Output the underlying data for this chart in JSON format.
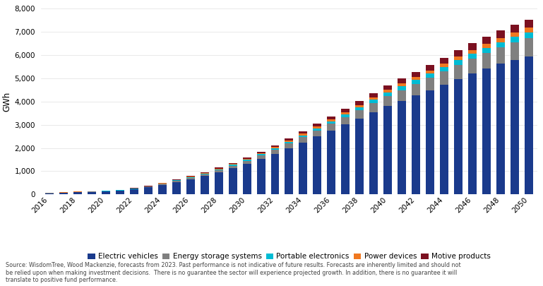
{
  "years": [
    2016,
    2017,
    2018,
    2019,
    2020,
    2021,
    2022,
    2023,
    2024,
    2025,
    2026,
    2027,
    2028,
    2029,
    2030,
    2031,
    2032,
    2033,
    2034,
    2035,
    2036,
    2037,
    2038,
    2039,
    2040,
    2041,
    2042,
    2043,
    2044,
    2045,
    2046,
    2047,
    2048,
    2049,
    2050
  ],
  "electric_vehicles": [
    55,
    72,
    95,
    110,
    125,
    160,
    215,
    305,
    420,
    540,
    660,
    800,
    960,
    1130,
    1320,
    1530,
    1750,
    1990,
    2240,
    2500,
    2760,
    3010,
    3270,
    3540,
    3810,
    4030,
    4260,
    4490,
    4730,
    4980,
    5210,
    5410,
    5620,
    5800,
    5950
  ],
  "energy_storage_systems": [
    8,
    9,
    11,
    13,
    14,
    17,
    22,
    28,
    36,
    46,
    58,
    72,
    88,
    106,
    126,
    148,
    172,
    198,
    226,
    256,
    288,
    322,
    357,
    394,
    432,
    464,
    497,
    530,
    564,
    599,
    635,
    668,
    702,
    736,
    768
  ],
  "portable_electronics": [
    6,
    7,
    8,
    9,
    10,
    11,
    13,
    15,
    19,
    23,
    27,
    32,
    38,
    44,
    51,
    58,
    66,
    74,
    83,
    92,
    102,
    113,
    124,
    136,
    148,
    158,
    168,
    178,
    189,
    200,
    211,
    221,
    232,
    242,
    252
  ],
  "power_devices": [
    4,
    5,
    5,
    6,
    7,
    8,
    9,
    11,
    14,
    17,
    20,
    24,
    28,
    32,
    37,
    43,
    49,
    55,
    62,
    70,
    78,
    86,
    95,
    104,
    114,
    122,
    130,
    138,
    147,
    156,
    165,
    174,
    183,
    191,
    199
  ],
  "motive_products": [
    5,
    6,
    7,
    8,
    9,
    11,
    13,
    16,
    20,
    24,
    29,
    35,
    42,
    50,
    59,
    69,
    80,
    91,
    104,
    118,
    132,
    147,
    163,
    180,
    198,
    212,
    227,
    242,
    257,
    273,
    290,
    305,
    320,
    335,
    350
  ],
  "colors": {
    "electric_vehicles": "#1a3a8c",
    "energy_storage_systems": "#808080",
    "portable_electronics": "#00bcd4",
    "power_devices": "#f07820",
    "motive_products": "#7b1020"
  },
  "labels": {
    "electric_vehicles": "Electric vehicles",
    "energy_storage_systems": "Energy storage systems",
    "portable_electronics": "Portable electronics",
    "power_devices": "Power devices",
    "motive_products": "Motive products"
  },
  "ylabel": "GWh",
  "ylim": [
    0,
    8000
  ],
  "yticks": [
    0,
    1000,
    2000,
    3000,
    4000,
    5000,
    6000,
    7000,
    8000
  ],
  "source_text": "Source: WisdomTree, Wood Mackenzie, forecasts from 2023. Past performance is not indicative of future results. Forecasts are inherently limited and should not\nbe relied upon when making investment decisions.  There is no guarantee the sector will experience projected growth. In addition, there is no guarantee it will\ntranslate to positive fund performance.",
  "background_color": "#ffffff",
  "bar_width": 0.6
}
